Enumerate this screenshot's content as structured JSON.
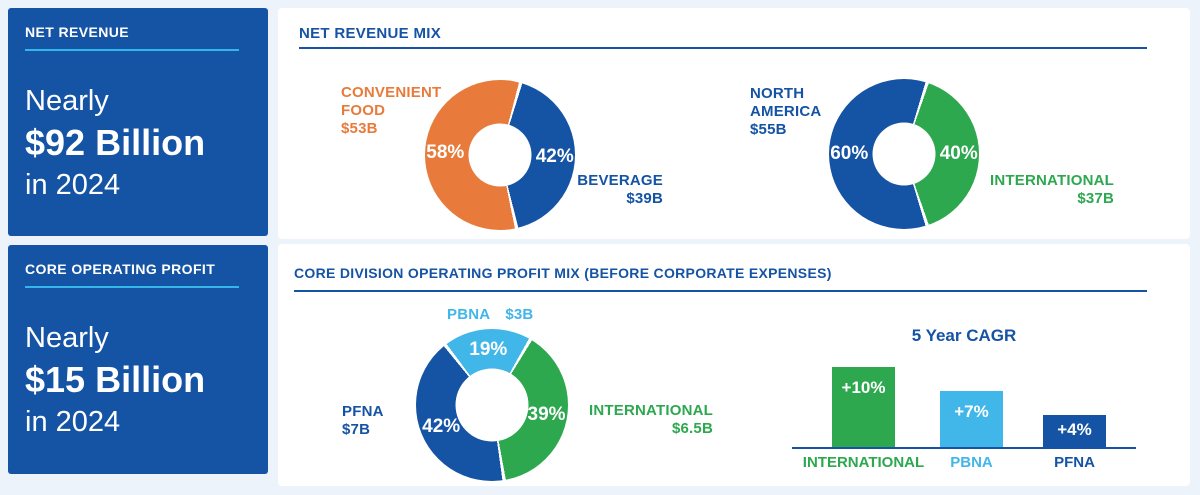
{
  "colors": {
    "dark_blue": "#1553A4",
    "orange": "#E87B3B",
    "green": "#2DA84F",
    "light_blue": "#41B6E8",
    "accent_light_blue": "#35B6EA",
    "page_bg": "#EDF3FA",
    "card_bg": "#FFFFFF"
  },
  "left_panels": [
    {
      "header": "NET REVENUE",
      "line1": "Nearly",
      "line2": "$92 Billion",
      "line3": "in 2024"
    },
    {
      "header": "CORE OPERATING PROFIT",
      "line1": "Nearly",
      "line2": "$15 Billion",
      "line3": "in 2024"
    }
  ],
  "cards": [
    {
      "title": "NET REVENUE MIX"
    },
    {
      "title": "CORE DIVISION OPERATING PROFIT MIX (BEFORE CORPORATE EXPENSES)"
    }
  ],
  "chart_data": [
    {
      "type": "pie",
      "donut": true,
      "title": "NET REVENUE MIX — product split",
      "start_angle": 16,
      "segments": [
        {
          "label": "BEVERAGE",
          "label_lines": [
            "BEVERAGE"
          ],
          "value_pct": 42,
          "amount": "$39B",
          "pct_label": "42%",
          "color": "#1553A4"
        },
        {
          "label": "CONVENIENT FOOD",
          "label_lines": [
            "CONVENIENT",
            "FOOD"
          ],
          "value_pct": 58,
          "amount": "$53B",
          "pct_label": "58%",
          "color": "#E87B3B"
        }
      ]
    },
    {
      "type": "pie",
      "donut": true,
      "title": "NET REVENUE MIX — geographic split",
      "start_angle": 18,
      "segments": [
        {
          "label": "INTERNATIONAL",
          "label_lines": [
            "INTERNATIONAL"
          ],
          "value_pct": 40,
          "amount": "$37B",
          "pct_label": "40%",
          "color": "#2DA84F"
        },
        {
          "label": "NORTH AMERICA",
          "label_lines": [
            "NORTH",
            "AMERICA"
          ],
          "value_pct": 60,
          "amount": "$55B",
          "pct_label": "60%",
          "color": "#1553A4"
        }
      ]
    },
    {
      "type": "pie",
      "donut": true,
      "title": "CORE DIVISION OPERATING PROFIT MIX (BEFORE CORPORATE EXPENSES)",
      "start_angle": -38,
      "segments": [
        {
          "label": "PBNA",
          "label_lines": [
            "PBNA"
          ],
          "value_pct": 19,
          "amount": "$3B",
          "pct_label": "19%",
          "color": "#41B6E8"
        },
        {
          "label": "INTERNATIONAL",
          "label_lines": [
            "INTERNATIONAL"
          ],
          "value_pct": 39,
          "amount": "$6.5B",
          "pct_label": "39%",
          "color": "#2DA84F"
        },
        {
          "label": "PFNA",
          "label_lines": [
            "PFNA"
          ],
          "value_pct": 42,
          "amount": "$7B",
          "pct_label": "42%",
          "color": "#1553A4"
        }
      ]
    },
    {
      "type": "bar",
      "title": "5 Year CAGR",
      "categories": [
        "INTERNATIONAL",
        "PBNA",
        "PFNA"
      ],
      "values": [
        10,
        7,
        4
      ],
      "bar_labels": [
        "+10%",
        "+7%",
        "+4%"
      ],
      "colors": [
        "#2DA84F",
        "#41B6E8",
        "#1553A4"
      ],
      "ylim": [
        0,
        12
      ],
      "legend": "none",
      "grid": false
    }
  ]
}
